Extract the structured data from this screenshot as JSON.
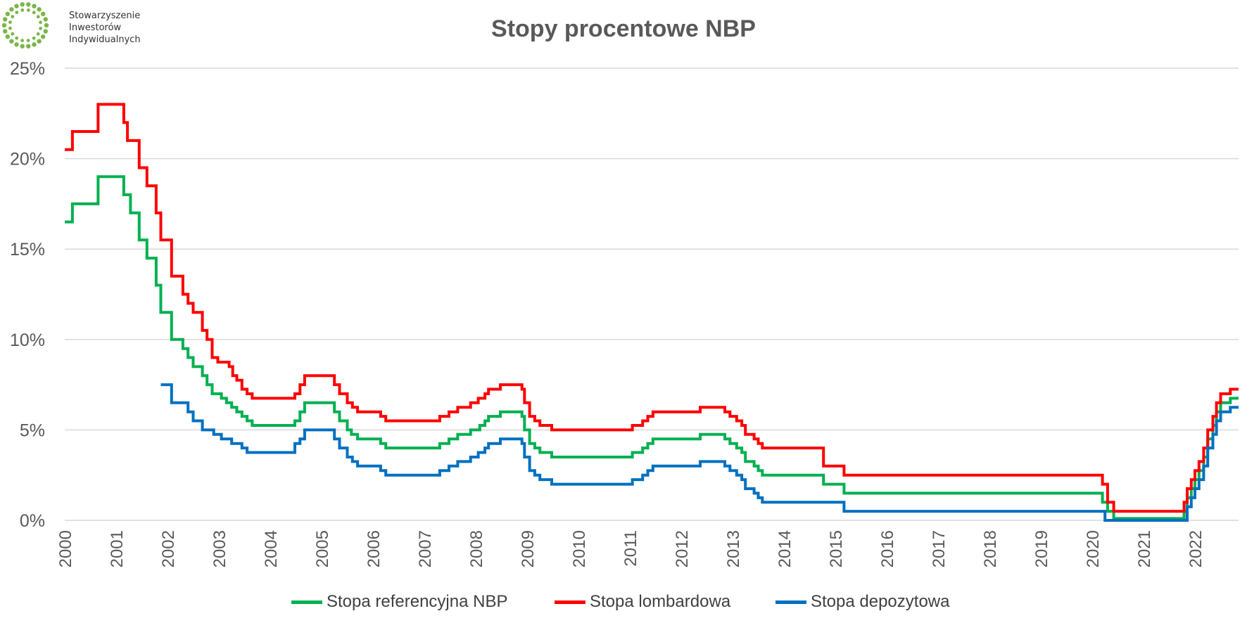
{
  "logo": {
    "lines": [
      "Stowarzyszenie",
      "Inwestorów",
      "Indywidualnych"
    ],
    "color": "#7ab648"
  },
  "chart_data": {
    "type": "line",
    "title": "Stopy procentowe NBP",
    "xlabel": "",
    "ylabel": "",
    "ylim": [
      0,
      25
    ],
    "xlim": [
      2000.0,
      2022.85
    ],
    "y_ticks": [
      "0%",
      "5%",
      "10%",
      "15%",
      "20%",
      "25%"
    ],
    "x_ticks": [
      "2000",
      "2001",
      "2002",
      "2003",
      "2004",
      "2005",
      "2006",
      "2007",
      "2008",
      "2009",
      "2010",
      "2011",
      "2012",
      "2013",
      "2014",
      "2015",
      "2016",
      "2017",
      "2018",
      "2019",
      "2020",
      "2021",
      "2022"
    ],
    "grid": true,
    "legend_position": "bottom",
    "series": [
      {
        "name": "Stopa referencyjna NBP",
        "color": "#00b050",
        "step": true,
        "points": [
          [
            2000.0,
            16.5
          ],
          [
            2000.15,
            17.5
          ],
          [
            2000.65,
            19.0
          ],
          [
            2001.15,
            18.0
          ],
          [
            2001.28,
            17.0
          ],
          [
            2001.45,
            15.5
          ],
          [
            2001.6,
            14.5
          ],
          [
            2001.78,
            13.0
          ],
          [
            2001.87,
            11.5
          ],
          [
            2002.08,
            10.0
          ],
          [
            2002.3,
            9.5
          ],
          [
            2002.4,
            9.0
          ],
          [
            2002.5,
            8.5
          ],
          [
            2002.68,
            8.0
          ],
          [
            2002.77,
            7.5
          ],
          [
            2002.87,
            7.0
          ],
          [
            2003.05,
            6.75
          ],
          [
            2003.15,
            6.5
          ],
          [
            2003.25,
            6.25
          ],
          [
            2003.35,
            6.0
          ],
          [
            2003.45,
            5.75
          ],
          [
            2003.55,
            5.5
          ],
          [
            2003.65,
            5.25
          ],
          [
            2004.48,
            5.5
          ],
          [
            2004.58,
            6.0
          ],
          [
            2004.67,
            6.5
          ],
          [
            2005.25,
            6.0
          ],
          [
            2005.35,
            5.5
          ],
          [
            2005.5,
            5.0
          ],
          [
            2005.58,
            4.75
          ],
          [
            2005.7,
            4.5
          ],
          [
            2006.15,
            4.25
          ],
          [
            2006.25,
            4.0
          ],
          [
            2007.3,
            4.25
          ],
          [
            2007.48,
            4.5
          ],
          [
            2007.65,
            4.75
          ],
          [
            2007.9,
            5.0
          ],
          [
            2008.08,
            5.25
          ],
          [
            2008.18,
            5.5
          ],
          [
            2008.25,
            5.75
          ],
          [
            2008.48,
            6.0
          ],
          [
            2008.9,
            5.75
          ],
          [
            2008.95,
            5.0
          ],
          [
            2009.05,
            4.25
          ],
          [
            2009.15,
            4.0
          ],
          [
            2009.25,
            3.75
          ],
          [
            2009.48,
            3.5
          ],
          [
            2011.05,
            3.75
          ],
          [
            2011.25,
            4.0
          ],
          [
            2011.35,
            4.25
          ],
          [
            2011.45,
            4.5
          ],
          [
            2012.37,
            4.75
          ],
          [
            2012.85,
            4.5
          ],
          [
            2012.95,
            4.25
          ],
          [
            2013.08,
            4.0
          ],
          [
            2013.18,
            3.75
          ],
          [
            2013.25,
            3.25
          ],
          [
            2013.42,
            3.0
          ],
          [
            2013.5,
            2.75
          ],
          [
            2013.58,
            2.5
          ],
          [
            2014.77,
            2.0
          ],
          [
            2015.17,
            1.5
          ],
          [
            2020.2,
            1.0
          ],
          [
            2020.3,
            0.5
          ],
          [
            2020.42,
            0.1
          ],
          [
            2021.79,
            0.5
          ],
          [
            2021.85,
            1.25
          ],
          [
            2021.93,
            1.75
          ],
          [
            2022.0,
            2.25
          ],
          [
            2022.08,
            2.75
          ],
          [
            2022.17,
            3.5
          ],
          [
            2022.25,
            4.5
          ],
          [
            2022.35,
            5.25
          ],
          [
            2022.42,
            6.0
          ],
          [
            2022.5,
            6.5
          ],
          [
            2022.69,
            6.75
          ],
          [
            2022.85,
            6.75
          ]
        ]
      },
      {
        "name": "Stopa lombardowa",
        "color": "#ff0000",
        "step": true,
        "points": [
          [
            2000.0,
            20.5
          ],
          [
            2000.15,
            21.5
          ],
          [
            2000.65,
            23.0
          ],
          [
            2001.15,
            22.0
          ],
          [
            2001.22,
            21.0
          ],
          [
            2001.45,
            19.5
          ],
          [
            2001.6,
            18.5
          ],
          [
            2001.78,
            17.0
          ],
          [
            2001.87,
            15.5
          ],
          [
            2002.08,
            13.5
          ],
          [
            2002.3,
            12.5
          ],
          [
            2002.4,
            12.0
          ],
          [
            2002.5,
            11.5
          ],
          [
            2002.68,
            10.5
          ],
          [
            2002.77,
            10.0
          ],
          [
            2002.87,
            9.0
          ],
          [
            2002.98,
            8.75
          ],
          [
            2003.2,
            8.5
          ],
          [
            2003.27,
            8.0
          ],
          [
            2003.35,
            7.75
          ],
          [
            2003.45,
            7.25
          ],
          [
            2003.55,
            7.0
          ],
          [
            2003.65,
            6.75
          ],
          [
            2004.48,
            7.0
          ],
          [
            2004.58,
            7.5
          ],
          [
            2004.67,
            8.0
          ],
          [
            2005.25,
            7.5
          ],
          [
            2005.35,
            7.0
          ],
          [
            2005.5,
            6.5
          ],
          [
            2005.6,
            6.25
          ],
          [
            2005.7,
            6.0
          ],
          [
            2006.15,
            5.75
          ],
          [
            2006.25,
            5.5
          ],
          [
            2007.3,
            5.75
          ],
          [
            2007.48,
            6.0
          ],
          [
            2007.65,
            6.25
          ],
          [
            2007.9,
            6.5
          ],
          [
            2008.05,
            6.75
          ],
          [
            2008.18,
            7.0
          ],
          [
            2008.25,
            7.25
          ],
          [
            2008.48,
            7.5
          ],
          [
            2008.9,
            7.25
          ],
          [
            2008.95,
            6.5
          ],
          [
            2009.05,
            5.75
          ],
          [
            2009.15,
            5.5
          ],
          [
            2009.25,
            5.25
          ],
          [
            2009.48,
            5.0
          ],
          [
            2011.05,
            5.25
          ],
          [
            2011.25,
            5.5
          ],
          [
            2011.35,
            5.75
          ],
          [
            2011.45,
            6.0
          ],
          [
            2012.37,
            6.25
          ],
          [
            2012.85,
            6.0
          ],
          [
            2012.95,
            5.75
          ],
          [
            2013.08,
            5.5
          ],
          [
            2013.18,
            5.25
          ],
          [
            2013.25,
            4.75
          ],
          [
            2013.42,
            4.5
          ],
          [
            2013.5,
            4.25
          ],
          [
            2013.58,
            4.0
          ],
          [
            2014.77,
            3.0
          ],
          [
            2015.17,
            2.5
          ],
          [
            2020.2,
            2.0
          ],
          [
            2020.3,
            1.0
          ],
          [
            2020.42,
            0.5
          ],
          [
            2021.79,
            1.0
          ],
          [
            2021.85,
            1.75
          ],
          [
            2021.93,
            2.25
          ],
          [
            2022.0,
            2.75
          ],
          [
            2022.08,
            3.25
          ],
          [
            2022.17,
            4.0
          ],
          [
            2022.25,
            5.0
          ],
          [
            2022.35,
            5.75
          ],
          [
            2022.42,
            6.5
          ],
          [
            2022.5,
            7.0
          ],
          [
            2022.69,
            7.25
          ],
          [
            2022.85,
            7.25
          ]
        ]
      },
      {
        "name": "Stopa depozytowa",
        "color": "#0070c0",
        "step": true,
        "points": [
          [
            2001.87,
            7.5
          ],
          [
            2002.08,
            6.5
          ],
          [
            2002.4,
            6.0
          ],
          [
            2002.5,
            5.5
          ],
          [
            2002.68,
            5.0
          ],
          [
            2002.9,
            4.75
          ],
          [
            2003.05,
            4.5
          ],
          [
            2003.25,
            4.25
          ],
          [
            2003.45,
            4.0
          ],
          [
            2003.55,
            3.75
          ],
          [
            2004.48,
            4.25
          ],
          [
            2004.58,
            4.5
          ],
          [
            2004.67,
            5.0
          ],
          [
            2005.25,
            4.5
          ],
          [
            2005.35,
            4.0
          ],
          [
            2005.5,
            3.5
          ],
          [
            2005.6,
            3.25
          ],
          [
            2005.7,
            3.0
          ],
          [
            2006.15,
            2.75
          ],
          [
            2006.25,
            2.5
          ],
          [
            2007.3,
            2.75
          ],
          [
            2007.48,
            3.0
          ],
          [
            2007.65,
            3.25
          ],
          [
            2007.9,
            3.5
          ],
          [
            2008.05,
            3.75
          ],
          [
            2008.18,
            4.0
          ],
          [
            2008.25,
            4.25
          ],
          [
            2008.48,
            4.5
          ],
          [
            2008.9,
            4.25
          ],
          [
            2008.95,
            3.5
          ],
          [
            2009.05,
            2.75
          ],
          [
            2009.15,
            2.5
          ],
          [
            2009.25,
            2.25
          ],
          [
            2009.48,
            2.0
          ],
          [
            2011.05,
            2.25
          ],
          [
            2011.25,
            2.5
          ],
          [
            2011.35,
            2.75
          ],
          [
            2011.45,
            3.0
          ],
          [
            2012.37,
            3.25
          ],
          [
            2012.85,
            3.0
          ],
          [
            2012.95,
            2.75
          ],
          [
            2013.08,
            2.5
          ],
          [
            2013.18,
            2.25
          ],
          [
            2013.25,
            1.75
          ],
          [
            2013.42,
            1.5
          ],
          [
            2013.5,
            1.25
          ],
          [
            2013.58,
            1.0
          ],
          [
            2015.17,
            0.5
          ],
          [
            2020.25,
            0.0
          ],
          [
            2021.79,
            0.0
          ],
          [
            2021.8,
            0.0
          ],
          [
            2021.85,
            0.75
          ],
          [
            2021.93,
            1.25
          ],
          [
            2022.0,
            1.75
          ],
          [
            2022.08,
            2.25
          ],
          [
            2022.17,
            3.0
          ],
          [
            2022.25,
            4.0
          ],
          [
            2022.35,
            4.75
          ],
          [
            2022.42,
            5.5
          ],
          [
            2022.5,
            6.0
          ],
          [
            2022.69,
            6.25
          ],
          [
            2022.85,
            6.25
          ]
        ]
      }
    ],
    "gridline_color": "#d9d9d9",
    "tick_label_color": "#595959"
  }
}
